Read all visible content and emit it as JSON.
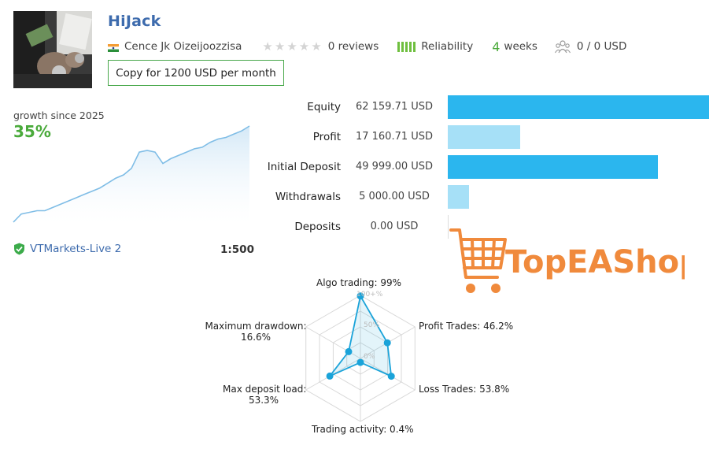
{
  "header": {
    "title": "HiJack",
    "author": "Cence Jk Oizeijoozzisa",
    "reviews": "0 reviews",
    "reliability": "Reliability",
    "weeks_num": "4",
    "weeks_label": "weeks",
    "subscribers": "0 / 0 USD",
    "copy_button": "Copy for 1200 USD per month"
  },
  "growth": {
    "label": "growth since 2025",
    "value": "35%",
    "series": [
      1,
      6,
      7,
      8,
      8,
      10,
      12,
      14,
      16,
      18,
      20,
      22,
      25,
      28,
      30,
      34,
      44,
      45,
      44,
      37,
      40,
      42,
      44,
      46,
      47,
      50,
      52,
      53,
      55,
      57,
      60
    ]
  },
  "account": {
    "broker": "VTMarkets-Live 2",
    "leverage": "1:500"
  },
  "stats": [
    {
      "label": "Equity",
      "value": "62 159.71 USD",
      "amount": 62159.71,
      "color": "#2bb6ee"
    },
    {
      "label": "Profit",
      "value": "17 160.71 USD",
      "amount": 17160.71,
      "color": "#a6e0f7"
    },
    {
      "label": "Initial Deposit",
      "value": "49 999.00 USD",
      "amount": 49999.0,
      "color": "#2bb6ee"
    },
    {
      "label": "Withdrawals",
      "value": "5 000.00 USD",
      "amount": 5000.0,
      "color": "#a6e0f7"
    },
    {
      "label": "Deposits",
      "value": "0.00 USD",
      "amount": 0.0,
      "color": "#a6e0f7"
    }
  ],
  "logo": {
    "text": "TopEAShop",
    "color": "#f08a3c"
  },
  "radar": {
    "scale_labels": [
      "100+%",
      "50%",
      "0%"
    ],
    "axes": [
      {
        "label": "Algo trading: 99%",
        "value": 99
      },
      {
        "label": "Profit Trades: 46.2%",
        "value": 46.2
      },
      {
        "label": "Loss Trades: 53.8%",
        "value": 53.8
      },
      {
        "label": "Trading activity: 0.4%",
        "value": 0.4
      },
      {
        "label": "Max deposit load:",
        "label2": "53.3%",
        "value": 53.3
      },
      {
        "label": "Maximum drawdown:",
        "label2": "16.6%",
        "value": 16.6
      }
    ],
    "color": "#1aa3d9"
  }
}
